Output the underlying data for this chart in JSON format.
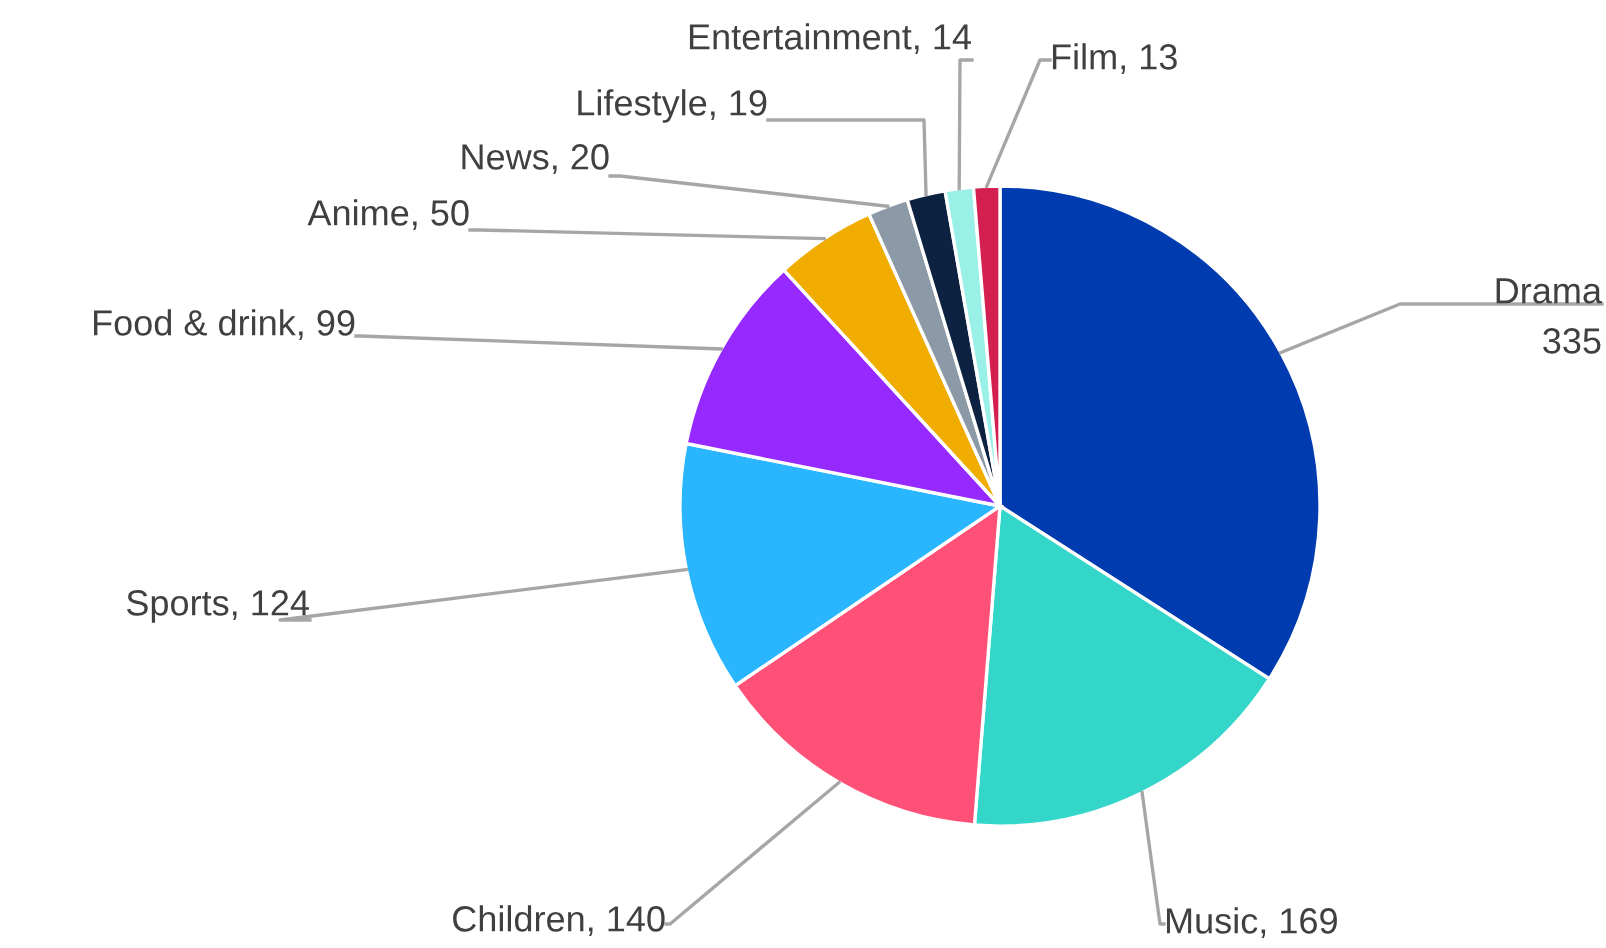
{
  "chart_data": {
    "type": "pie",
    "categories": [
      "Drama",
      "Music",
      "Children",
      "Sports",
      "Food & drink",
      "Anime",
      "News",
      "Lifestyle",
      "Entertainment",
      "Film"
    ],
    "values": [
      335,
      169,
      140,
      124,
      99,
      50,
      20,
      19,
      14,
      13
    ],
    "colors": [
      "#003cb0",
      "#33d6c9",
      "#ff5078",
      "#2ab5ff",
      "#9529ff",
      "#f0ad00",
      "#8c99a6",
      "#0d2240",
      "#99f0e6",
      "#d42050"
    ],
    "value_labels": [
      "335",
      ", 169",
      ", 140",
      ", 124",
      ", 99",
      ", 50",
      ", 20",
      ", 19",
      ", 14",
      ", 13"
    ],
    "legend": false
  }
}
